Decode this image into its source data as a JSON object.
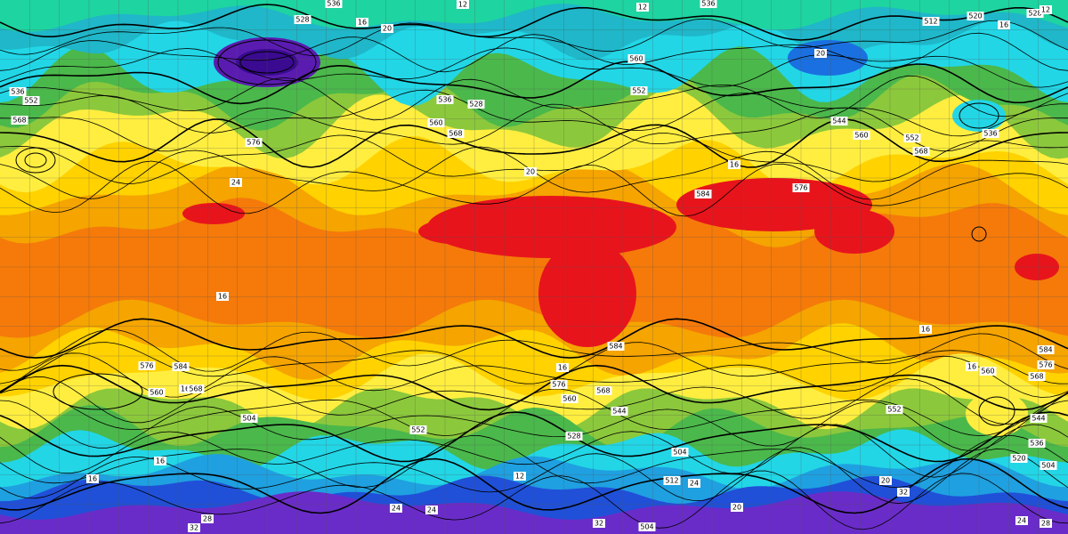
{
  "map": {
    "contour_labels": [
      "536",
      "12",
      "12",
      "536",
      "528",
      "16",
      "20",
      "512",
      "520",
      "16",
      "528",
      "12",
      "560",
      "552",
      "20",
      "536",
      "552",
      "568",
      "536",
      "528",
      "560",
      "568",
      "576",
      "24",
      "544",
      "560",
      "552",
      "568",
      "536",
      "16",
      "576",
      "20",
      "584",
      "16",
      "16",
      "584",
      "576",
      "568",
      "560",
      "576",
      "584",
      "560",
      "16",
      "568",
      "16",
      "584",
      "576",
      "568",
      "560",
      "544",
      "504",
      "552",
      "528",
      "552",
      "544",
      "504",
      "520",
      "504",
      "536",
      "16",
      "12",
      "512",
      "24",
      "20",
      "32",
      "20",
      "24",
      "24",
      "28",
      "32",
      "32",
      "504",
      "24",
      "28",
      "16",
      "16"
    ]
  }
}
